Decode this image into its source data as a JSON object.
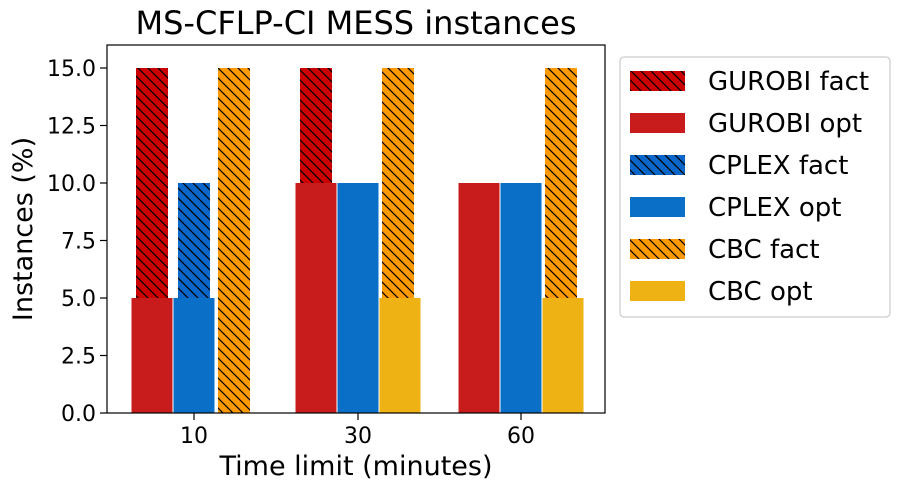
{
  "chart_data": {
    "type": "bar",
    "title": "MS-CFLP-CI MESS instances",
    "xlabel": "Time limit (minutes)",
    "ylabel": "Instances (%)",
    "categories": [
      "10",
      "30",
      "60"
    ],
    "ylim": [
      0,
      16
    ],
    "yticks": [
      "0.0",
      "2.5",
      "5.0",
      "7.5",
      "10.0",
      "12.5",
      "15.0"
    ],
    "grid": false,
    "legend_position": "outside-right",
    "series": [
      {
        "name": "GUROBI fact",
        "values": [
          15,
          15,
          0
        ],
        "color": "#cc0000",
        "hatched": true
      },
      {
        "name": "GUROBI opt",
        "values": [
          5,
          10,
          10
        ],
        "color": "#c81c1c",
        "hatched": false
      },
      {
        "name": "CPLEX fact",
        "values": [
          10,
          0,
          0
        ],
        "color": "#0a66c9",
        "hatched": true
      },
      {
        "name": "CPLEX opt",
        "values": [
          5,
          10,
          10
        ],
        "color": "#0a6fc6",
        "hatched": false
      },
      {
        "name": "CBC fact",
        "values": [
          15,
          15,
          15
        ],
        "color": "#ff9900",
        "hatched": true
      },
      {
        "name": "CBC opt",
        "values": [
          0,
          5,
          5
        ],
        "color": "#efb215",
        "hatched": false
      }
    ]
  }
}
